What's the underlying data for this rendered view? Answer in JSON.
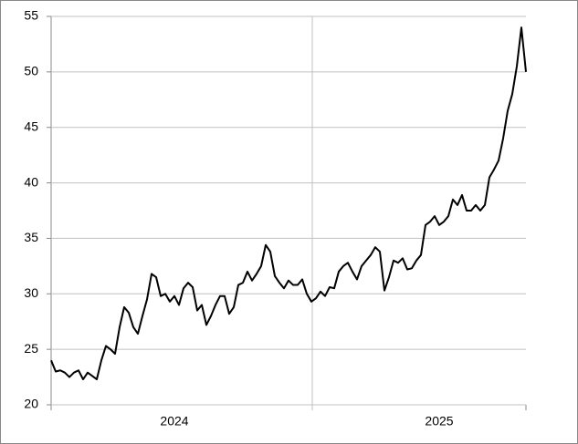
{
  "chart_data": {
    "type": "line",
    "categories": [
      null,
      null,
      null,
      null,
      null,
      null,
      null,
      null,
      null,
      null,
      null,
      null,
      null,
      null,
      null,
      null,
      null,
      null,
      null,
      null,
      null,
      null,
      null,
      null,
      null,
      null,
      null,
      "2024",
      null,
      null,
      null,
      null,
      null,
      null,
      null,
      null,
      null,
      null,
      null,
      null,
      null,
      null,
      null,
      null,
      null,
      null,
      null,
      null,
      null,
      null,
      null,
      null,
      null,
      null,
      null,
      null,
      null,
      null,
      null,
      null,
      null,
      null,
      null,
      null,
      null,
      null,
      null,
      null,
      null,
      null,
      null,
      null,
      null,
      null,
      null,
      null,
      null,
      null,
      null,
      null,
      null,
      null,
      null,
      null,
      null,
      "2025",
      null,
      null,
      null,
      null,
      null,
      null,
      null,
      null,
      null,
      null,
      null,
      null,
      null,
      null,
      null,
      null,
      null,
      null,
      null
    ],
    "series": [
      {
        "color": "#000000",
        "values": [
          24.0,
          23.0,
          23.1,
          22.9,
          22.5,
          22.9,
          23.1,
          22.3,
          22.9,
          22.6,
          22.3,
          24.0,
          25.3,
          25.0,
          24.6,
          27.0,
          28.8,
          28.3,
          27.0,
          26.4,
          28.0,
          29.5,
          31.8,
          31.5,
          29.8,
          30.0,
          29.3,
          29.8,
          29.0,
          30.5,
          31.0,
          30.6,
          28.5,
          29.0,
          27.2,
          28.0,
          29.0,
          29.8,
          29.8,
          28.2,
          28.8,
          30.8,
          31.0,
          32.0,
          31.2,
          31.8,
          32.5,
          34.4,
          33.8,
          31.6,
          31.0,
          30.5,
          31.2,
          30.8,
          30.8,
          31.3,
          30.0,
          29.3,
          29.6,
          30.2,
          29.8,
          30.6,
          30.5,
          32.0,
          32.5,
          32.8,
          32.0,
          31.3,
          32.5,
          33.0,
          33.5,
          34.2,
          33.8,
          30.3,
          31.5,
          33.0,
          32.8,
          33.2,
          32.2,
          32.3,
          33.0,
          33.5,
          36.2,
          36.5,
          37.0,
          36.2,
          36.5,
          37.0,
          38.5,
          38.0,
          38.9,
          37.5,
          37.5,
          38.0,
          37.5,
          38.0,
          40.5,
          41.2,
          42.0,
          44.0,
          46.5,
          48.0,
          50.5,
          54.0,
          50.0
        ]
      }
    ],
    "ylim": [
      20,
      55
    ],
    "yticks": [
      20,
      25,
      30,
      35,
      40,
      45,
      50,
      55
    ],
    "grid": true
  }
}
